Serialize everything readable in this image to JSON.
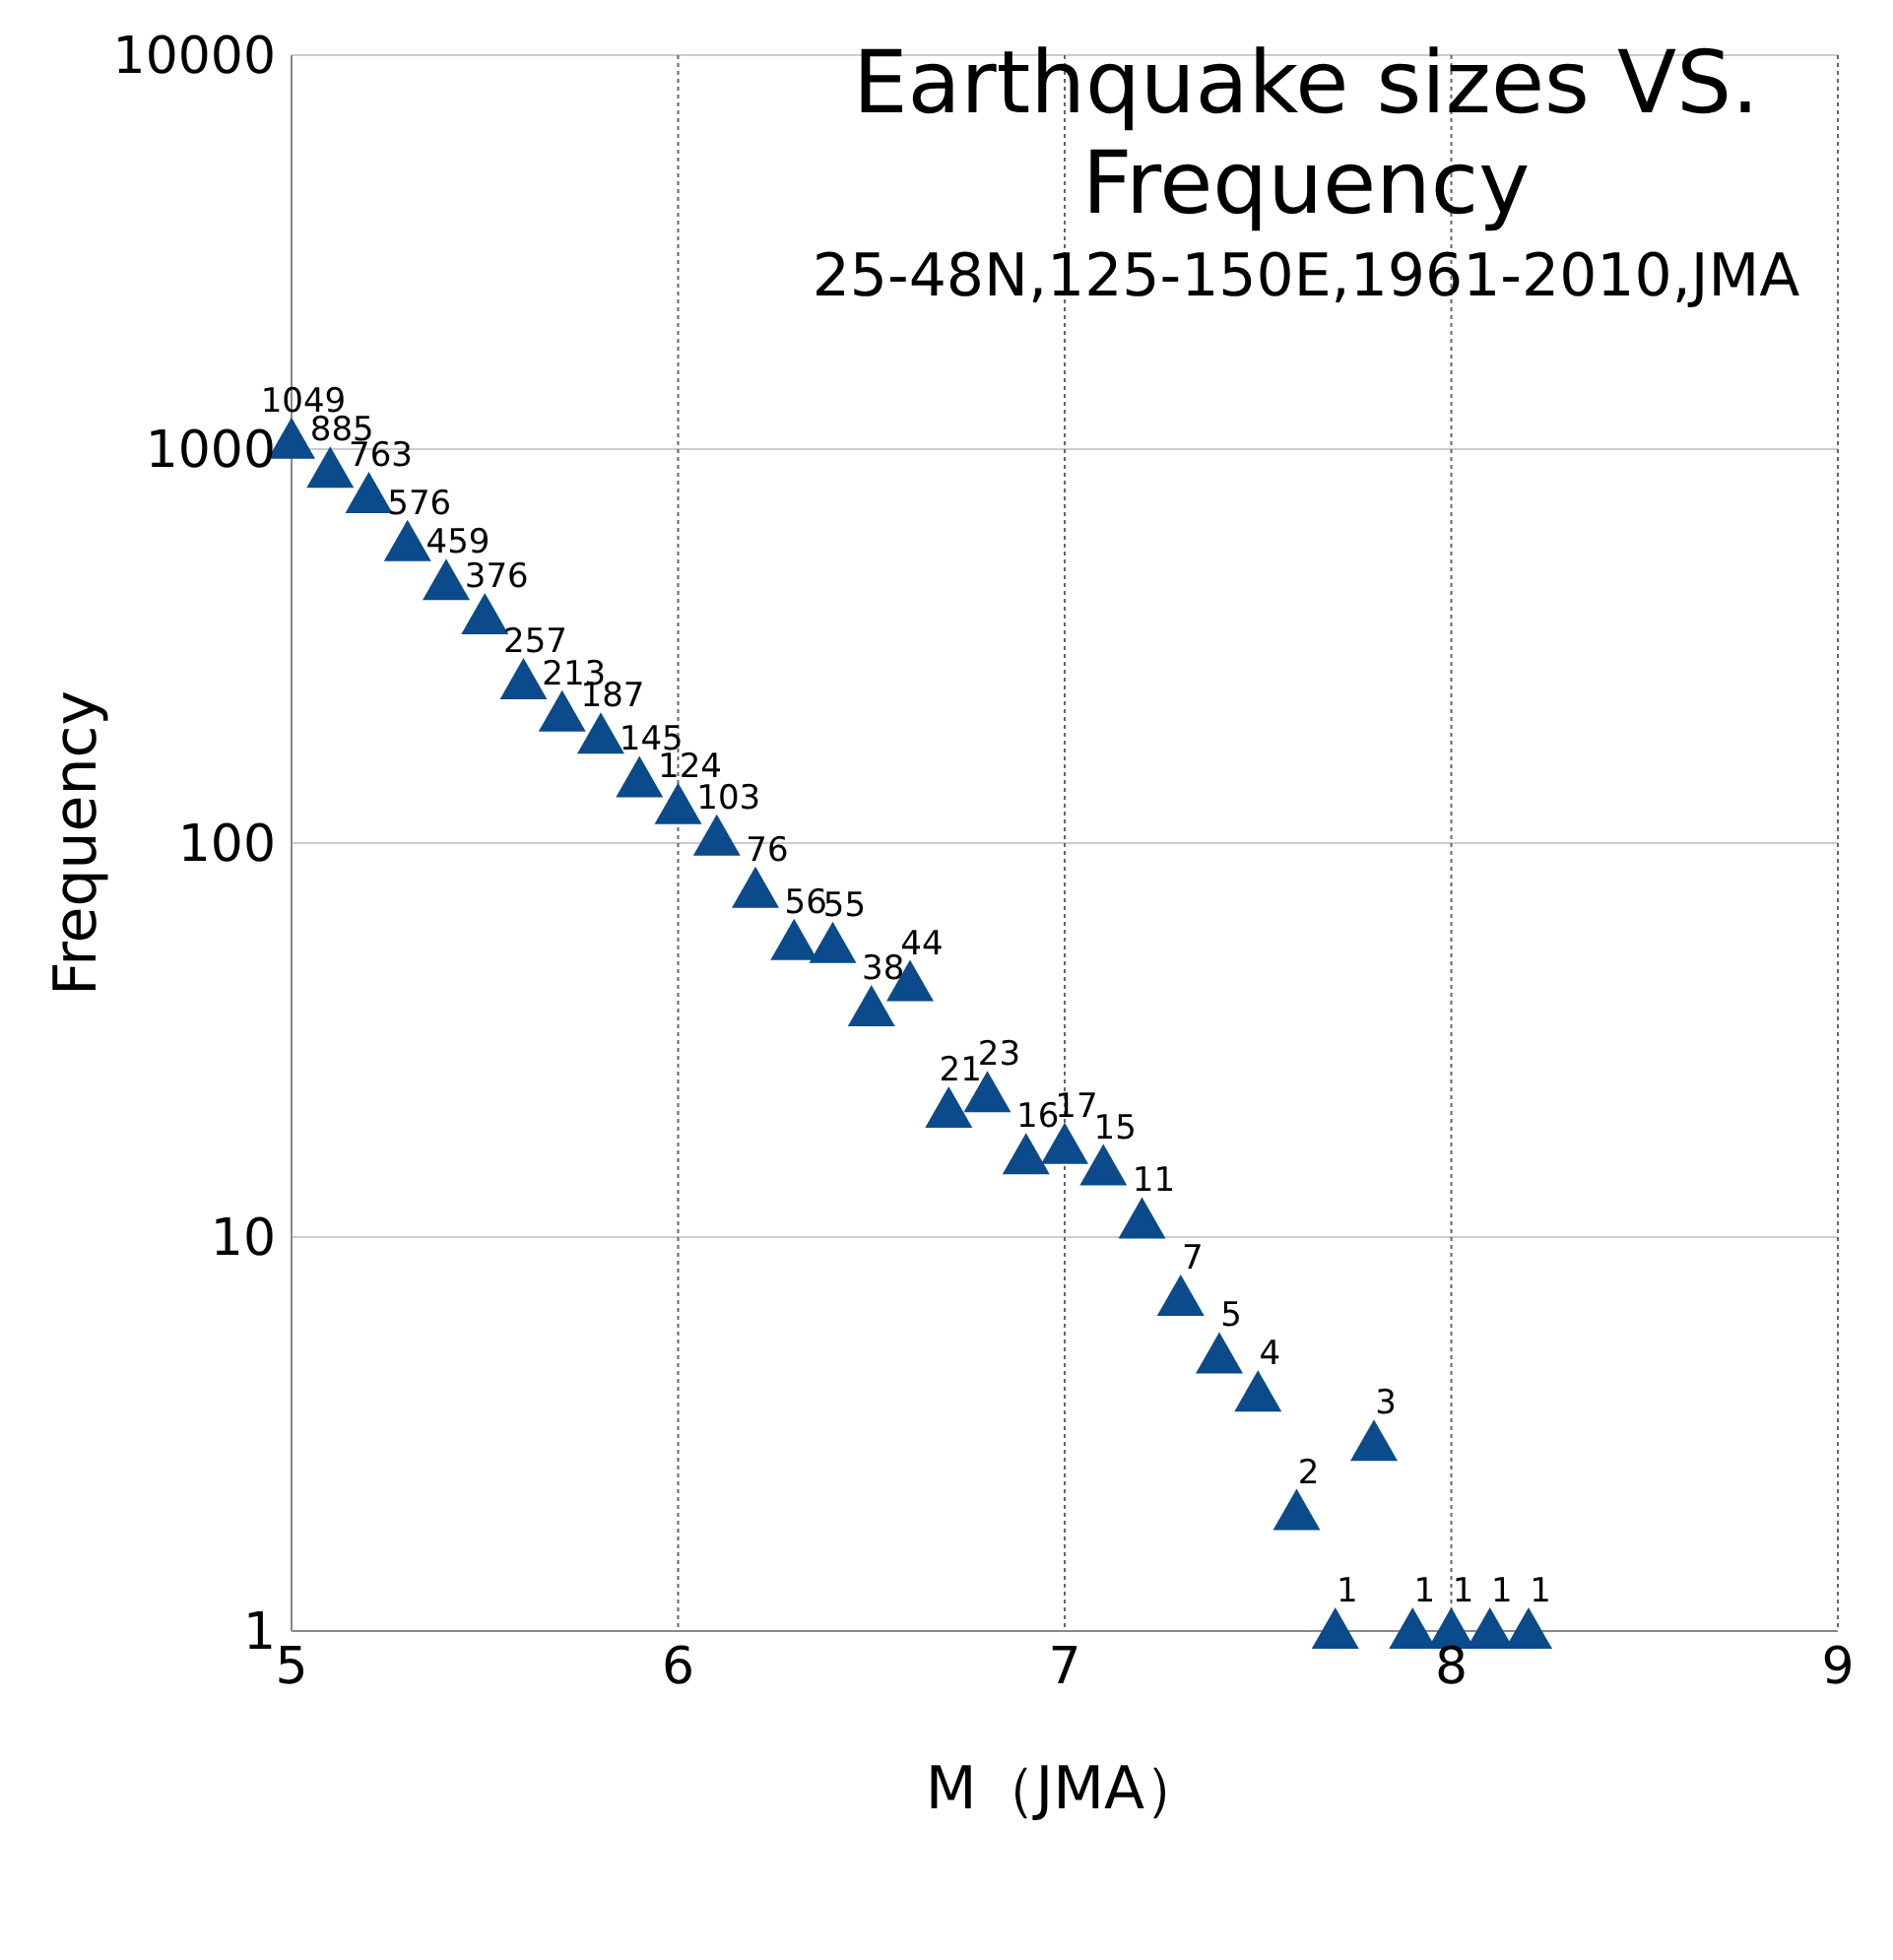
{
  "chart_data": {
    "type": "scatter",
    "title": "Earthquake sizes VS. Frequency",
    "subtitle": "25-48N,125-150E,1961-2010,JMA",
    "xlabel": "M（JMA）",
    "ylabel": "Frequency",
    "x": [
      5.0,
      5.1,
      5.2,
      5.3,
      5.4,
      5.5,
      5.6,
      5.7,
      5.8,
      5.9,
      6.0,
      6.1,
      6.2,
      6.3,
      6.4,
      6.5,
      6.6,
      6.7,
      6.8,
      6.9,
      7.0,
      7.1,
      7.2,
      7.3,
      7.4,
      7.5,
      7.6,
      7.7,
      7.8,
      7.9,
      8.0,
      8.1,
      8.2
    ],
    "series": [
      {
        "color": "#0b4a8b",
        "values": [
          1049,
          885,
          763,
          576,
          459,
          376,
          257,
          213,
          187,
          145,
          124,
          103,
          76,
          56,
          55,
          38,
          44,
          21,
          23,
          16,
          17,
          15,
          11,
          7,
          5,
          4,
          2,
          1,
          3,
          1,
          1,
          1,
          1
        ]
      }
    ],
    "xlim": [
      5,
      9
    ],
    "xticks": [
      5,
      6,
      7,
      8,
      9
    ],
    "ylim": [
      1,
      10000
    ],
    "yticks": [
      1,
      10,
      100,
      1000,
      10000
    ],
    "log": "y",
    "grid": true,
    "marker": "triangle",
    "data_labels": true
  }
}
